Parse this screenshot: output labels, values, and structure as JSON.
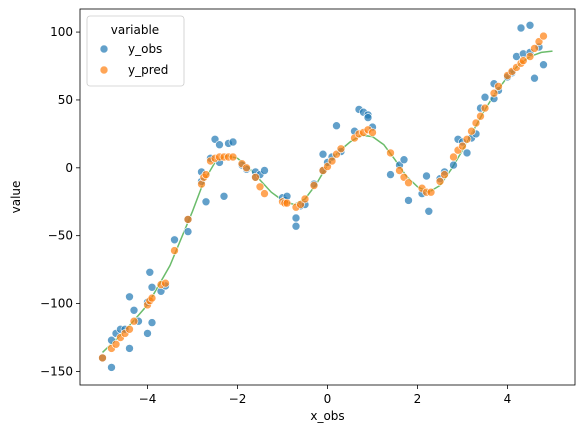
{
  "chart_data": {
    "type": "scatter",
    "xlabel": "x_obs",
    "ylabel": "value",
    "xlim": [
      -5.5,
      5.5
    ],
    "ylim": [
      -160,
      117
    ],
    "xticks": [
      -4,
      -2,
      0,
      2,
      4
    ],
    "yticks": [
      -150,
      -100,
      -50,
      0,
      50,
      100
    ],
    "legend": {
      "title": "variable",
      "placement": "top-left",
      "entries": [
        "y_obs",
        "y_pred"
      ]
    },
    "colors": {
      "y_obs": "#1f77b4",
      "y_pred": "#ff7f0e",
      "fit": "#2ca02c"
    },
    "grid": false,
    "series": [
      {
        "name": "y_obs",
        "points": [
          [
            -5.0,
            -140
          ],
          [
            -4.8,
            -147
          ],
          [
            -4.8,
            -127
          ],
          [
            -4.7,
            -122
          ],
          [
            -4.6,
            -119
          ],
          [
            -4.5,
            -119
          ],
          [
            -4.4,
            -133
          ],
          [
            -4.4,
            -95
          ],
          [
            -4.3,
            -105
          ],
          [
            -4.2,
            -113
          ],
          [
            -4.0,
            -122
          ],
          [
            -4.0,
            -99
          ],
          [
            -3.95,
            -77
          ],
          [
            -3.9,
            -88
          ],
          [
            -3.9,
            -114
          ],
          [
            -3.7,
            -91
          ],
          [
            -3.6,
            -87
          ],
          [
            -3.4,
            -53
          ],
          [
            -3.1,
            -47
          ],
          [
            -3.1,
            -38
          ],
          [
            -2.8,
            -10
          ],
          [
            -2.8,
            -3
          ],
          [
            -2.7,
            -25
          ],
          [
            -2.6,
            7
          ],
          [
            -2.5,
            21
          ],
          [
            -2.4,
            17
          ],
          [
            -2.4,
            4
          ],
          [
            -2.3,
            -21
          ],
          [
            -2.2,
            18
          ],
          [
            -2.1,
            19
          ],
          [
            -1.9,
            2
          ],
          [
            -1.8,
            -1
          ],
          [
            -1.6,
            -3
          ],
          [
            -1.6,
            -7
          ],
          [
            -1.5,
            -5
          ],
          [
            -1.4,
            -2
          ],
          [
            -1.0,
            -22
          ],
          [
            -0.95,
            -24
          ],
          [
            -0.9,
            -21
          ],
          [
            -0.7,
            -43
          ],
          [
            -0.7,
            -37
          ],
          [
            -0.6,
            -28
          ],
          [
            -0.5,
            -27
          ],
          [
            -0.3,
            -12
          ],
          [
            -0.1,
            -2
          ],
          [
            -0.1,
            10
          ],
          [
            0.0,
            4
          ],
          [
            0.1,
            8
          ],
          [
            0.2,
            31
          ],
          [
            0.3,
            12
          ],
          [
            0.6,
            27
          ],
          [
            0.7,
            43
          ],
          [
            0.8,
            41
          ],
          [
            0.9,
            39
          ],
          [
            0.9,
            37
          ],
          [
            1.0,
            30
          ],
          [
            1.4,
            -5
          ],
          [
            1.6,
            2
          ],
          [
            1.7,
            6
          ],
          [
            1.8,
            -24
          ],
          [
            2.1,
            -19
          ],
          [
            2.2,
            -6
          ],
          [
            2.25,
            -32
          ],
          [
            2.5,
            -8
          ],
          [
            2.6,
            -3
          ],
          [
            2.8,
            2
          ],
          [
            2.9,
            21
          ],
          [
            3.0,
            19
          ],
          [
            3.1,
            11
          ],
          [
            3.2,
            22
          ],
          [
            3.3,
            25
          ],
          [
            3.4,
            44
          ],
          [
            3.5,
            52
          ],
          [
            3.7,
            51
          ],
          [
            3.7,
            62
          ],
          [
            3.8,
            57
          ],
          [
            4.0,
            67
          ],
          [
            4.1,
            70
          ],
          [
            4.2,
            82
          ],
          [
            4.3,
            103
          ],
          [
            4.35,
            84
          ],
          [
            4.5,
            85
          ],
          [
            4.5,
            105
          ],
          [
            4.6,
            66
          ],
          [
            4.7,
            89
          ],
          [
            4.8,
            76
          ]
        ]
      },
      {
        "name": "y_pred",
        "points": [
          [
            -5.0,
            -140
          ],
          [
            -4.8,
            -133
          ],
          [
            -4.7,
            -130
          ],
          [
            -4.6,
            -125
          ],
          [
            -4.5,
            -122
          ],
          [
            -4.4,
            -119
          ],
          [
            -4.3,
            -113
          ],
          [
            -4.0,
            -101
          ],
          [
            -3.95,
            -98
          ],
          [
            -3.9,
            -96
          ],
          [
            -3.7,
            -86
          ],
          [
            -3.6,
            -85
          ],
          [
            -3.4,
            -61
          ],
          [
            -3.1,
            -38
          ],
          [
            -2.8,
            -12
          ],
          [
            -2.75,
            -7
          ],
          [
            -2.7,
            -5
          ],
          [
            -2.6,
            5
          ],
          [
            -2.5,
            7
          ],
          [
            -2.4,
            8
          ],
          [
            -2.3,
            8
          ],
          [
            -2.2,
            8
          ],
          [
            -2.1,
            8
          ],
          [
            -1.9,
            3
          ],
          [
            -1.8,
            0
          ],
          [
            -1.6,
            -7
          ],
          [
            -1.5,
            -14
          ],
          [
            -1.4,
            -19
          ],
          [
            -1.0,
            -25
          ],
          [
            -0.95,
            -26
          ],
          [
            -0.9,
            -26
          ],
          [
            -0.7,
            -29
          ],
          [
            -0.6,
            -27
          ],
          [
            -0.5,
            -23
          ],
          [
            -0.3,
            -13
          ],
          [
            -0.1,
            -2
          ],
          [
            0.0,
            1
          ],
          [
            0.1,
            5
          ],
          [
            0.2,
            10
          ],
          [
            0.3,
            14
          ],
          [
            0.6,
            22
          ],
          [
            0.7,
            25
          ],
          [
            0.8,
            26
          ],
          [
            0.9,
            28
          ],
          [
            1.0,
            26
          ],
          [
            1.4,
            11
          ],
          [
            1.6,
            -2
          ],
          [
            1.7,
            -7
          ],
          [
            1.8,
            -11
          ],
          [
            2.1,
            -15
          ],
          [
            2.2,
            -18
          ],
          [
            2.3,
            -18
          ],
          [
            2.5,
            -10
          ],
          [
            2.6,
            -5
          ],
          [
            2.8,
            8
          ],
          [
            2.9,
            13
          ],
          [
            3.0,
            16
          ],
          [
            3.1,
            21
          ],
          [
            3.2,
            27
          ],
          [
            3.3,
            33
          ],
          [
            3.4,
            38
          ],
          [
            3.5,
            44
          ],
          [
            3.7,
            55
          ],
          [
            3.8,
            60
          ],
          [
            4.0,
            68
          ],
          [
            4.1,
            71
          ],
          [
            4.2,
            74
          ],
          [
            4.3,
            77
          ],
          [
            4.35,
            79
          ],
          [
            4.5,
            82
          ],
          [
            4.6,
            88
          ],
          [
            4.7,
            93
          ],
          [
            4.8,
            97
          ]
        ]
      },
      {
        "name": "",
        "kind": "line",
        "points": [
          [
            -5.0,
            -136
          ],
          [
            -4.5,
            -120
          ],
          [
            -4.0,
            -101
          ],
          [
            -3.5,
            -72
          ],
          [
            -3.0,
            -32
          ],
          [
            -2.75,
            -10
          ],
          [
            -2.5,
            4
          ],
          [
            -2.25,
            9
          ],
          [
            -2.0,
            7
          ],
          [
            -1.75,
            0
          ],
          [
            -1.5,
            -9
          ],
          [
            -1.25,
            -18
          ],
          [
            -1.0,
            -24
          ],
          [
            -0.75,
            -27
          ],
          [
            -0.5,
            -23
          ],
          [
            -0.25,
            -12
          ],
          [
            0.0,
            2
          ],
          [
            0.25,
            12
          ],
          [
            0.5,
            19
          ],
          [
            0.75,
            24
          ],
          [
            1.0,
            23
          ],
          [
            1.25,
            17
          ],
          [
            1.5,
            6
          ],
          [
            1.75,
            -6
          ],
          [
            2.0,
            -14
          ],
          [
            2.25,
            -18
          ],
          [
            2.5,
            -13
          ],
          [
            2.75,
            -1
          ],
          [
            3.0,
            13
          ],
          [
            3.25,
            28
          ],
          [
            3.5,
            43
          ],
          [
            3.75,
            56
          ],
          [
            4.0,
            67
          ],
          [
            4.25,
            76
          ],
          [
            4.5,
            82
          ],
          [
            4.75,
            85
          ],
          [
            5.0,
            86
          ]
        ]
      }
    ]
  }
}
